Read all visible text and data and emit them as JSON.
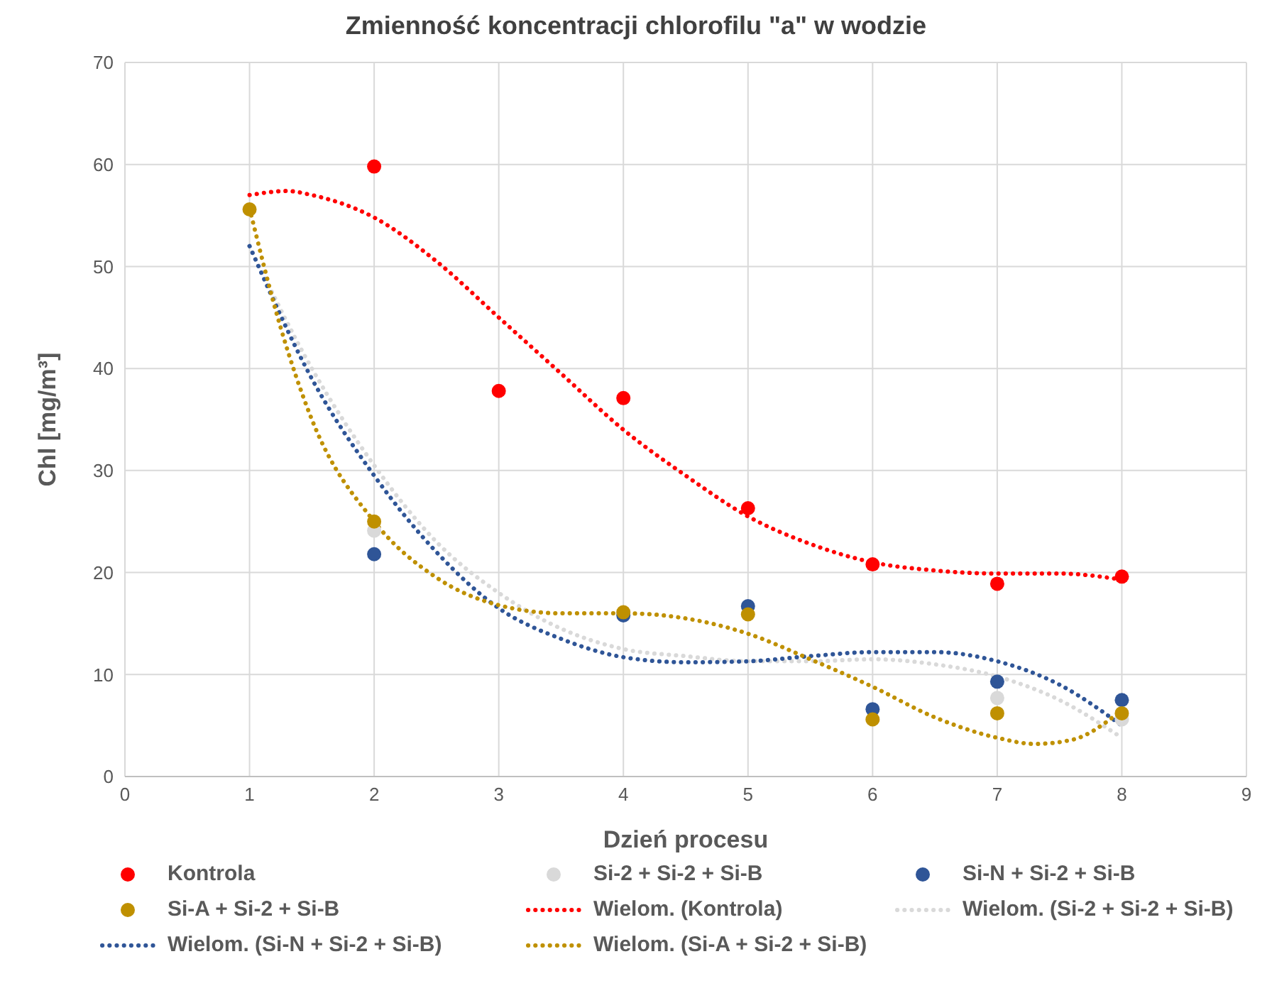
{
  "chart_data": {
    "type": "scatter",
    "title": "Zmienność koncentracji chlorofilu \"a\" w wodzie",
    "xlabel": "Dzień procesu",
    "ylabel": "Chl [mg/m³]",
    "x": [
      1,
      2,
      3,
      4,
      5,
      6,
      7,
      8
    ],
    "series": [
      {
        "name": "Kontrola",
        "color": "#ff0000",
        "marker": "circle",
        "values": [
          null,
          59.8,
          37.8,
          37.1,
          26.3,
          20.8,
          18.9,
          19.6
        ]
      },
      {
        "name": "Si-2 + Si-2 + Si-B",
        "color": "#d9d9d9",
        "marker": "circle",
        "values": [
          null,
          24.1,
          null,
          null,
          null,
          null,
          7.7,
          5.6
        ]
      },
      {
        "name": "Si-N + Si-2 + Si-B",
        "color": "#2f5597",
        "marker": "circle",
        "values": [
          null,
          21.8,
          null,
          15.8,
          16.7,
          6.6,
          9.3,
          7.5
        ]
      },
      {
        "name": "Si-A + Si-2 + Si-B",
        "color": "#bf9000",
        "marker": "circle",
        "values": [
          55.6,
          25.0,
          null,
          16.1,
          15.9,
          5.6,
          6.2,
          6.2
        ]
      },
      {
        "name": "Wielom. (Kontrola)",
        "type": "line",
        "color": "#ff0000",
        "marker": "none",
        "line_style": "dotted",
        "x": [
          1,
          1.3,
          1.5,
          2,
          2.5,
          3,
          3.5,
          4,
          4.5,
          5,
          5.5,
          6,
          6.5,
          7,
          7.5,
          8
        ],
        "values": [
          57,
          57.4,
          57,
          54.8,
          50.5,
          45,
          39.5,
          34,
          29.5,
          25.5,
          22.8,
          21,
          20.2,
          19.9,
          19.9,
          19.3
        ]
      },
      {
        "name": "Wielom. (Si-2 + Si-2 + Si-B)",
        "type": "line",
        "color": "#d9d9d9",
        "marker": "none",
        "line_style": "dotted",
        "x": [
          1,
          1.5,
          2,
          2.5,
          3,
          3.5,
          4,
          4.5,
          5,
          5.5,
          6,
          6.5,
          7,
          7.5,
          8
        ],
        "values": [
          52,
          40,
          30.5,
          23,
          18,
          14.5,
          12.5,
          11.8,
          11.3,
          11.3,
          11.5,
          11,
          9.8,
          7.5,
          3.8
        ]
      },
      {
        "name": "Wielom. (Si-N + Si-2 + Si-B)",
        "type": "line",
        "color": "#2f5597",
        "marker": "none",
        "line_style": "dotted",
        "x": [
          1,
          1.5,
          2,
          2.5,
          3,
          3.5,
          4,
          4.5,
          5,
          5.5,
          6,
          6.5,
          7,
          7.5,
          8
        ],
        "values": [
          52,
          39,
          29.5,
          22,
          16.5,
          13.5,
          11.7,
          11.2,
          11.3,
          11.8,
          12.2,
          12.2,
          11.3,
          9,
          5
        ]
      },
      {
        "name": "Wielom. (Si-A + Si-2 + Si-B)",
        "type": "line",
        "color": "#bf9000",
        "marker": "none",
        "line_style": "dotted",
        "x": [
          1,
          1.25,
          1.5,
          2,
          2.5,
          3,
          3.5,
          4,
          4.5,
          5,
          5.5,
          6,
          6.5,
          7,
          7.3,
          7.6,
          8
        ],
        "values": [
          55.7,
          44,
          35,
          25,
          19.5,
          16.8,
          16,
          16,
          15.5,
          14,
          11.5,
          8.8,
          5.8,
          3.8,
          3.2,
          3.6,
          6.5
        ]
      }
    ],
    "xlim": [
      0,
      9
    ],
    "xticks": [
      0,
      1,
      2,
      3,
      4,
      5,
      6,
      7,
      8,
      9
    ],
    "ylim": [
      0,
      70
    ],
    "yticks": [
      0,
      10,
      20,
      30,
      40,
      50,
      60,
      70
    ],
    "grid": true,
    "legend": "bottom"
  }
}
